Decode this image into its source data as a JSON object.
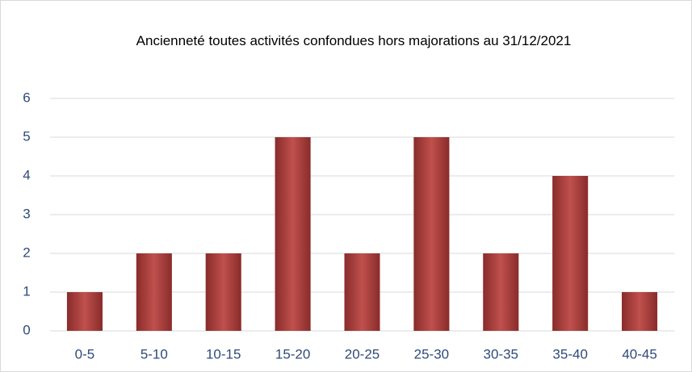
{
  "chart_data": {
    "type": "bar",
    "title": "Ancienneté toutes activités confondues hors majorations au 31/12/2021",
    "categories": [
      "0-5",
      "5-10",
      "10-15",
      "15-20",
      "20-25",
      "25-30",
      "30-35",
      "35-40",
      "40-45"
    ],
    "values": [
      1,
      2,
      2,
      5,
      2,
      5,
      2,
      4,
      1
    ],
    "color": "#c0504d",
    "ylim": [
      0,
      6
    ],
    "yticks": [
      0,
      1,
      2,
      3,
      4,
      5,
      6
    ],
    "grid": true
  }
}
